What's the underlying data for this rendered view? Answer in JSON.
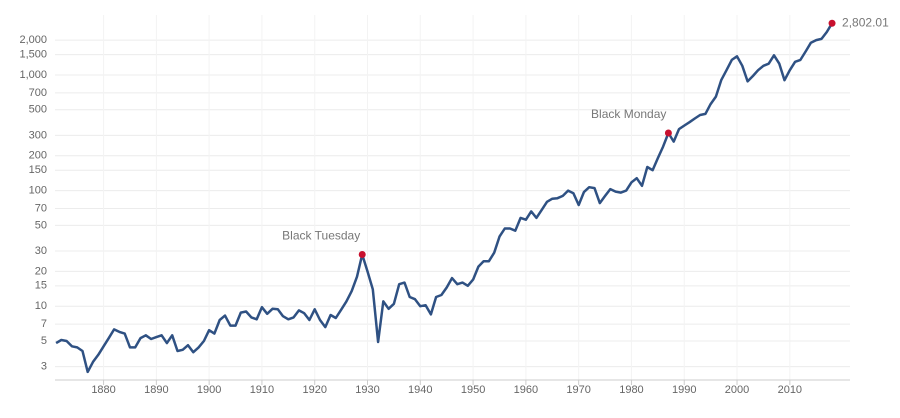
{
  "chart_data": {
    "type": "line",
    "log_scale": true,
    "grid": true,
    "x": [
      1871,
      1872,
      1873,
      1874,
      1875,
      1876,
      1877,
      1878,
      1879,
      1880,
      1881,
      1882,
      1883,
      1884,
      1885,
      1886,
      1887,
      1888,
      1889,
      1890,
      1891,
      1892,
      1893,
      1894,
      1895,
      1896,
      1897,
      1898,
      1899,
      1900,
      1901,
      1902,
      1903,
      1904,
      1905,
      1906,
      1907,
      1908,
      1909,
      1910,
      1911,
      1912,
      1913,
      1914,
      1915,
      1916,
      1917,
      1918,
      1919,
      1920,
      1921,
      1922,
      1923,
      1924,
      1925,
      1926,
      1927,
      1928,
      1929,
      1930,
      1931,
      1932,
      1933,
      1934,
      1935,
      1936,
      1937,
      1938,
      1939,
      1940,
      1941,
      1942,
      1943,
      1944,
      1945,
      1946,
      1947,
      1948,
      1949,
      1950,
      1951,
      1952,
      1953,
      1954,
      1955,
      1956,
      1957,
      1958,
      1959,
      1960,
      1961,
      1962,
      1963,
      1964,
      1965,
      1966,
      1967,
      1968,
      1969,
      1970,
      1971,
      1972,
      1973,
      1974,
      1975,
      1976,
      1977,
      1978,
      1979,
      1980,
      1981,
      1982,
      1983,
      1984,
      1985,
      1986,
      1987,
      1988,
      1989,
      1990,
      1991,
      1992,
      1993,
      1994,
      1995,
      1996,
      1997,
      1998,
      1999,
      2000,
      2001,
      2002,
      2003,
      2004,
      2005,
      2006,
      2007,
      2008,
      2009,
      2010,
      2011,
      2012,
      2013,
      2014,
      2015,
      2016,
      2017,
      2018
    ],
    "series": [
      {
        "color": "#2f5183",
        "values": [
          4.8,
          5.1,
          5.0,
          4.5,
          4.4,
          4.1,
          2.7,
          3.3,
          3.8,
          4.5,
          5.3,
          6.3,
          6.0,
          5.8,
          4.4,
          4.4,
          5.3,
          5.6,
          5.2,
          5.4,
          5.6,
          4.8,
          5.6,
          4.1,
          4.2,
          4.6,
          4.0,
          4.4,
          5.0,
          6.2,
          5.8,
          7.6,
          8.3,
          6.8,
          6.8,
          8.8,
          9.0,
          8.0,
          7.7,
          9.8,
          8.6,
          9.5,
          9.4,
          8.2,
          7.7,
          8.0,
          9.2,
          8.7,
          7.6,
          9.4,
          7.6,
          6.6,
          8.4,
          7.9,
          9.3,
          11,
          13.5,
          18,
          28,
          20,
          14,
          4.9,
          11,
          9.5,
          10.5,
          15.5,
          16,
          12,
          11.5,
          10,
          10.2,
          8.5,
          12,
          12.5,
          14.5,
          17.5,
          15.5,
          16,
          15,
          17,
          22,
          24.5,
          24.5,
          29,
          40,
          47,
          47,
          45,
          58,
          56,
          66,
          58,
          68,
          80,
          85,
          86,
          90,
          100,
          95,
          75,
          97,
          107,
          105,
          78,
          90,
          103,
          98,
          96,
          100,
          118,
          128,
          110,
          160,
          150,
          190,
          240,
          315,
          265,
          340,
          365,
          390,
          420,
          450,
          460,
          560,
          650,
          900,
          1100,
          1350,
          1450,
          1200,
          880,
          980,
          1100,
          1200,
          1250,
          1480,
          1250,
          900,
          1100,
          1300,
          1350,
          1600,
          1900,
          2000,
          2050,
          2350,
          2802.01
        ]
      }
    ],
    "annotations": [
      {
        "text": "Black Tuesday",
        "x": 1929,
        "color": "#c8102e"
      },
      {
        "text": "Black Monday",
        "x": 1987,
        "color": "#c8102e"
      },
      {
        "text": "2,802.01",
        "x": 2018,
        "color": "#c8102e"
      }
    ],
    "xlim": [
      1870.8,
      2021.4
    ],
    "xticks": [
      1880,
      1890,
      1900,
      1910,
      1920,
      1930,
      1940,
      1950,
      1960,
      1970,
      1980,
      1990,
      2000,
      2010
    ],
    "ylim": [
      2.3,
      3300
    ],
    "yticks": [
      3,
      5,
      7,
      10,
      15,
      20,
      30,
      50,
      70,
      100,
      150,
      200,
      300,
      500,
      700,
      {
        "value": 1000,
        "label": "1,000"
      },
      {
        "value": 1500,
        "label": "1,500"
      },
      {
        "value": 2000,
        "label": "2,000"
      }
    ]
  }
}
